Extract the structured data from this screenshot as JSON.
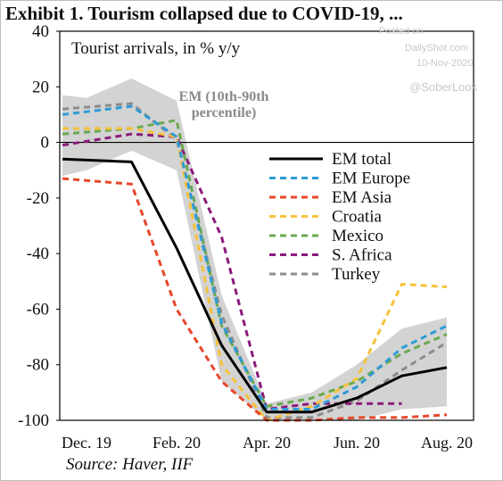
{
  "title": "Exhibit 1. Tourism collapsed due to COVID-19, ...",
  "source": "Source: Haver, IIF",
  "chart_data": {
    "type": "line",
    "subtitle": "Tourist arrivals, in % y/y",
    "band_label_line1": "EM (10th-90th",
    "band_label_line2": "percentile)",
    "watermark": {
      "line1": "Posted on",
      "line2": "DailyShot.com",
      "line3": "10-Nov-2020",
      "handle": "@SoberLook"
    },
    "x": [
      "2019-12",
      "2020-01",
      "2020-02",
      "2020-03",
      "2020-04",
      "2020-05",
      "2020-06",
      "2020-07",
      "2020-08"
    ],
    "x_tick_labels": [
      "Dec. 19",
      "Feb. 20",
      "Apr. 20",
      "Jun. 20",
      "Aug. 20"
    ],
    "ylim": [
      -100,
      40
    ],
    "yticks": [
      40,
      20,
      0,
      -20,
      -40,
      -60,
      -80,
      -100
    ],
    "grid": false,
    "legend_position": "right",
    "band": {
      "name": "EM (10th-90th percentile)",
      "color": "#d3d3d3",
      "x": [
        "2019-11-15",
        "2019-12",
        "2020-01",
        "2020-02",
        "2020-03",
        "2020-04",
        "2020-05",
        "2020-06",
        "2020-07",
        "2020-08"
      ],
      "upper": [
        17,
        16,
        23,
        15,
        -55,
        -94,
        -90,
        -80,
        -67,
        -63
      ],
      "lower": [
        -12,
        -10,
        -3,
        -10,
        -86,
        -100,
        -100,
        -100,
        -96,
        -95
      ]
    },
    "series": [
      {
        "name": "EM total",
        "color": "#000000",
        "dash": "solid",
        "x": [
          "2019-11-15",
          "2020-01",
          "2020-02",
          "2020-03",
          "2020-04",
          "2020-05",
          "2020-06",
          "2020-07",
          "2020-08"
        ],
        "values": [
          -6,
          -7,
          -38,
          -73,
          -97,
          -97,
          -92,
          -84,
          -81
        ]
      },
      {
        "name": "EM Europe",
        "color": "#2e9bd6",
        "dash": "dashed",
        "x": [
          "2019-11-15",
          "2020-01",
          "2020-02",
          "2020-03",
          "2020-04",
          "2020-05",
          "2020-06",
          "2020-07",
          "2020-08"
        ],
        "values": [
          10,
          13,
          2,
          -65,
          -96,
          -96,
          -88,
          -74,
          -66
        ]
      },
      {
        "name": "EM Asia",
        "color": "#e8462a",
        "dash": "dashed",
        "x": [
          "2019-11-15",
          "2020-01",
          "2020-02",
          "2020-03",
          "2020-04",
          "2020-05",
          "2020-06",
          "2020-07",
          "2020-08"
        ],
        "values": [
          -13,
          -15,
          -60,
          -86,
          -100,
          -100,
          -99,
          -99,
          -98
        ]
      },
      {
        "name": "Croatia",
        "color": "#f5c23a",
        "dash": "dashed",
        "x": [
          "2019-11-15",
          "2020-01",
          "2020-02",
          "2020-03",
          "2020-04",
          "2020-05",
          "2020-06",
          "2020-07",
          "2020-08"
        ],
        "values": [
          5,
          5,
          2,
          -80,
          -100,
          -95,
          -85,
          -51,
          -52
        ]
      },
      {
        "name": "Mexico",
        "color": "#6aa84f",
        "dash": "dashed",
        "x": [
          "2019-11-15",
          "2020-01",
          "2020-02",
          "2020-03",
          "2020-04",
          "2020-05",
          "2020-06",
          "2020-07",
          "2020-08"
        ],
        "values": [
          3,
          5,
          8,
          -66,
          -95,
          -92,
          -86,
          -76,
          -69
        ]
      },
      {
        "name": "S. Africa",
        "color": "#8b1a7a",
        "dash": "dashed",
        "x": [
          "2019-11-15",
          "2020-01",
          "2020-02",
          "2020-03",
          "2020-04",
          "2020-05",
          "2020-06",
          "2020-07"
        ],
        "values": [
          -1,
          3,
          2,
          -34,
          -96,
          -94,
          -94,
          -94
        ]
      },
      {
        "name": "Turkey",
        "color": "#8c8c8c",
        "dash": "dashed",
        "x": [
          "2019-11-15",
          "2020-01",
          "2020-02",
          "2020-03",
          "2020-04",
          "2020-05",
          "2020-06",
          "2020-07",
          "2020-08"
        ],
        "values": [
          12,
          14,
          1,
          -62,
          -99,
          -99,
          -93,
          -82,
          -72
        ]
      }
    ]
  }
}
